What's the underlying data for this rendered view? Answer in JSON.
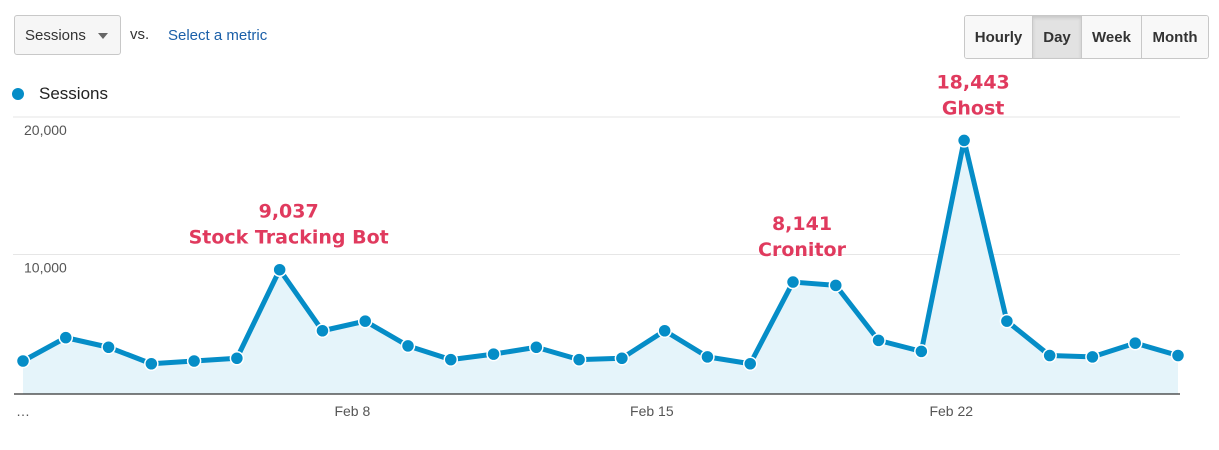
{
  "controls": {
    "metric": "Sessions",
    "vs": "vs.",
    "compare_link": "Select a metric",
    "ranges": [
      {
        "label": "Hourly",
        "active": false
      },
      {
        "label": "Day",
        "active": true
      },
      {
        "label": "Week",
        "active": false
      },
      {
        "label": "Month",
        "active": false
      }
    ]
  },
  "chart_data": {
    "type": "area",
    "title": "",
    "xlabel": "",
    "ylabel": "",
    "ylim": [
      0,
      20000
    ],
    "yticks": [
      {
        "value": 10000,
        "label": "10,000"
      },
      {
        "value": 20000,
        "label": "20,000"
      }
    ],
    "x_tick_labels": [
      {
        "index": 0,
        "label": "…"
      },
      {
        "index": 7,
        "label": "Feb 8"
      },
      {
        "index": 14,
        "label": "Feb 15"
      },
      {
        "index": 21,
        "label": "Feb 22"
      }
    ],
    "series": [
      {
        "name": "Sessions",
        "color": "#058dc7",
        "fill": "#e5f4fa",
        "values": [
          2400,
          4100,
          3400,
          2200,
          2400,
          2600,
          9037,
          4600,
          5300,
          3500,
          2500,
          2900,
          3400,
          2500,
          2600,
          4600,
          2700,
          2200,
          8141,
          7900,
          3900,
          3100,
          18443,
          5300,
          2800,
          2700,
          3700,
          2800
        ]
      }
    ],
    "grid": true,
    "legend": "top-left",
    "annotations": [
      {
        "index": 6,
        "value": "9,037",
        "label": "Stock Tracking Bot"
      },
      {
        "index": 18,
        "value": "8,141",
        "label": "Cronitor"
      },
      {
        "index": 22,
        "value": "18,443",
        "label": "Ghost"
      }
    ]
  }
}
